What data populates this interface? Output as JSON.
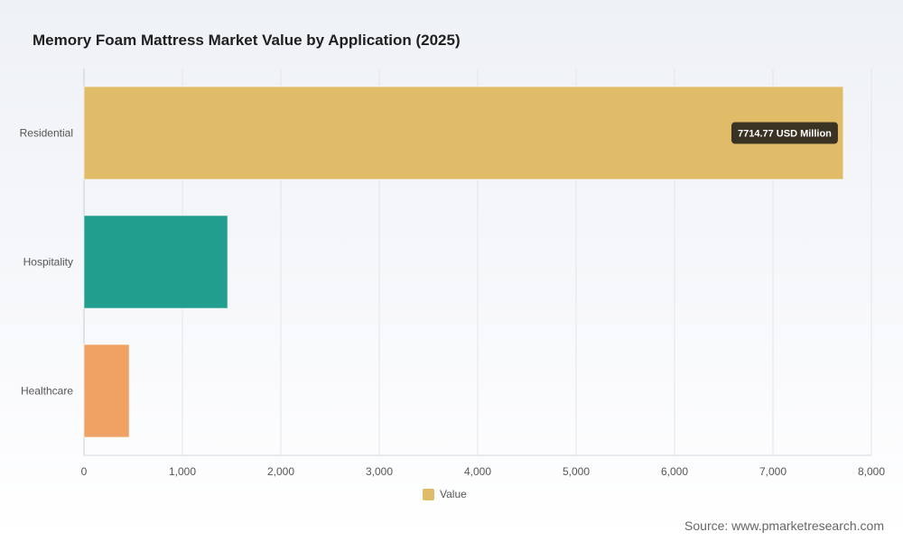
{
  "title": "Memory Foam Mattress Market Value by Application (2025)",
  "source": "Source: www.pmarketresearch.com",
  "legend_label": "Value",
  "legend_color": "#e0bc68",
  "chart_data": {
    "type": "bar",
    "orientation": "horizontal",
    "categories": [
      "Residential",
      "Hospitality",
      "Healthcare"
    ],
    "values": [
      7714.77,
      1460,
      460
    ],
    "colors": [
      "#e0bc68",
      "#229e8e",
      "#f0a265"
    ],
    "xlim": [
      0,
      8000
    ],
    "xticks": [
      0,
      1000,
      2000,
      3000,
      4000,
      5000,
      6000,
      7000,
      8000
    ],
    "xtick_labels": [
      "0",
      "1,000",
      "2,000",
      "3,000",
      "4,000",
      "5,000",
      "6,000",
      "7,000",
      "8,000"
    ],
    "grid": true,
    "legend": "bottom-center",
    "annotation": {
      "category": "Residential",
      "text": "7714.77 USD Million"
    }
  }
}
